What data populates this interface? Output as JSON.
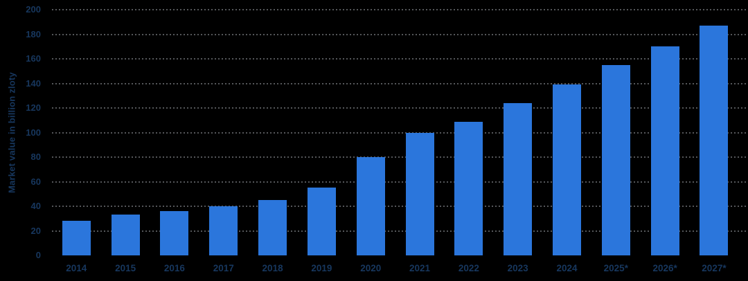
{
  "chart_data": {
    "type": "bar",
    "title": "",
    "xlabel": "",
    "ylabel": "Market value in billion zloty",
    "categories": [
      "2014",
      "2015",
      "2016",
      "2017",
      "2018",
      "2019",
      "2020",
      "2021",
      "2022",
      "2023",
      "2024",
      "2025*",
      "2026*",
      "2027*"
    ],
    "values": [
      28,
      33,
      36,
      40,
      45,
      55,
      80,
      100,
      109,
      124,
      139,
      155,
      170,
      187
    ],
    "ylim": [
      0,
      200
    ],
    "y_ticks": [
      0,
      20,
      40,
      60,
      80,
      100,
      120,
      140,
      160,
      180,
      200
    ],
    "grid": "horizontal-dotted",
    "legend": "none",
    "colors": {
      "bar": "#2b76dc",
      "axis_text": "#17375e",
      "gridline": "#55575a",
      "background": "#000000"
    }
  }
}
